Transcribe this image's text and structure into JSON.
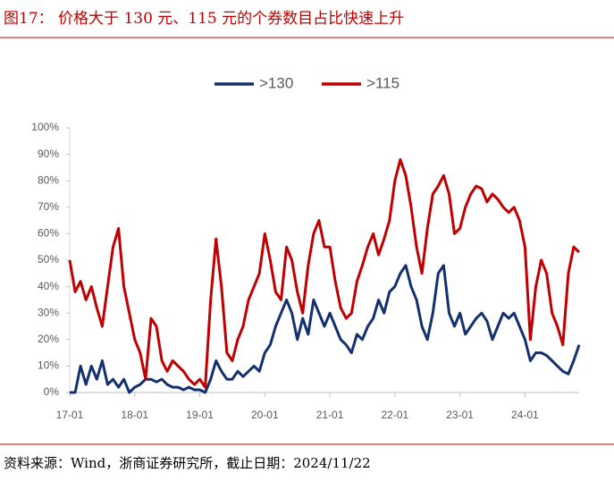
{
  "chart_data": {
    "type": "line",
    "title": "图17：  价格大于 130 元、115 元的个券数目占比快速上升",
    "source": "资料来源：Wind，浙商证券研究所，截止日期：2024/11/22",
    "categories": [
      "17-01",
      null,
      null,
      null,
      null,
      null,
      null,
      null,
      null,
      null,
      null,
      null,
      "18-01",
      null,
      null,
      null,
      null,
      null,
      null,
      null,
      null,
      null,
      null,
      null,
      "19-01",
      null,
      null,
      null,
      null,
      null,
      null,
      null,
      null,
      null,
      null,
      null,
      "20-01",
      null,
      null,
      null,
      null,
      null,
      null,
      null,
      null,
      null,
      null,
      null,
      "21-01",
      null,
      null,
      null,
      null,
      null,
      null,
      null,
      null,
      null,
      null,
      null,
      "22-01",
      null,
      null,
      null,
      null,
      null,
      null,
      null,
      null,
      null,
      null,
      null,
      "23-01",
      null,
      null,
      null,
      null,
      null,
      null,
      null,
      null,
      null,
      null,
      null,
      "24-01",
      null,
      null,
      null,
      null,
      null,
      null,
      null,
      null,
      null,
      null
    ],
    "series": [
      {
        "name": ">130",
        "color": "#14306e",
        "values": [
          0,
          0,
          10,
          3,
          10,
          5,
          12,
          3,
          5,
          2,
          5,
          0,
          2,
          3,
          5,
          5,
          4,
          5,
          3,
          2,
          2,
          1,
          2,
          1,
          1,
          0,
          5,
          12,
          8,
          5,
          5,
          8,
          6,
          8,
          10,
          8,
          15,
          18,
          25,
          30,
          35,
          30,
          20,
          28,
          22,
          35,
          30,
          25,
          30,
          25,
          20,
          18,
          15,
          22,
          20,
          25,
          28,
          35,
          30,
          38,
          40,
          45,
          48,
          40,
          35,
          25,
          20,
          30,
          45,
          48,
          30,
          25,
          30,
          22,
          25,
          28,
          30,
          27,
          20,
          25,
          30,
          28,
          30,
          25,
          20,
          12,
          15,
          15,
          14,
          12,
          10,
          8,
          7,
          12,
          18
        ]
      },
      {
        "name": ">115",
        "color": "#c00000",
        "values": [
          50,
          38,
          42,
          35,
          40,
          32,
          25,
          40,
          55,
          62,
          40,
          30,
          20,
          15,
          5,
          28,
          25,
          12,
          8,
          12,
          10,
          8,
          5,
          3,
          5,
          2,
          35,
          58,
          40,
          15,
          12,
          20,
          25,
          35,
          40,
          45,
          60,
          50,
          38,
          35,
          55,
          50,
          38,
          30,
          48,
          60,
          65,
          55,
          55,
          42,
          32,
          28,
          30,
          42,
          48,
          55,
          60,
          52,
          58,
          65,
          80,
          88,
          82,
          70,
          55,
          45,
          62,
          75,
          78,
          82,
          75,
          60,
          62,
          70,
          75,
          78,
          77,
          72,
          75,
          73,
          70,
          68,
          70,
          65,
          55,
          20,
          40,
          50,
          45,
          30,
          25,
          18,
          45,
          55,
          53
        ]
      }
    ],
    "ylim": [
      0,
      100
    ],
    "yticks": [
      {
        "value": 0,
        "label": "0%"
      },
      {
        "value": 10,
        "label": "10%"
      },
      {
        "value": 20,
        "label": "20%"
      },
      {
        "value": 30,
        "label": "30%"
      },
      {
        "value": 40,
        "label": "40%"
      },
      {
        "value": 50,
        "label": "50%"
      },
      {
        "value": 60,
        "label": "60%"
      },
      {
        "value": 70,
        "label": "70%"
      },
      {
        "value": 80,
        "label": "80%"
      },
      {
        "value": 90,
        "label": "90%"
      },
      {
        "value": 100,
        "label": "100%"
      }
    ],
    "grid": false,
    "legend": "top"
  }
}
